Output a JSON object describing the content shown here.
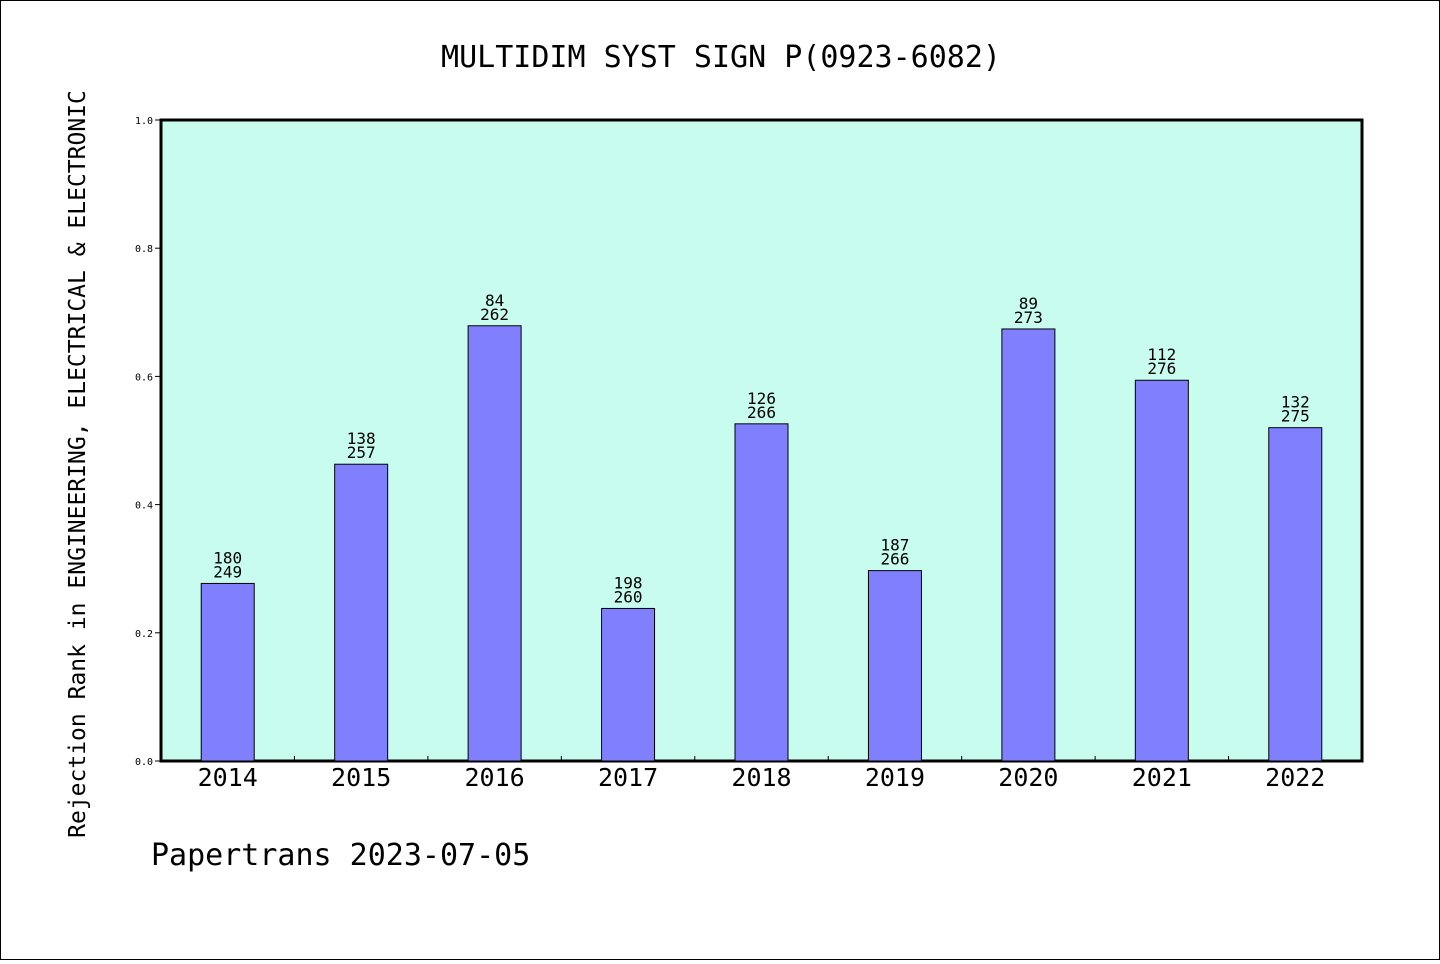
{
  "footer": {
    "text": "Papertrans 2023-07-05"
  },
  "colors": {
    "plot_background": "#c8fcef",
    "bar_fill": "#8080ff",
    "bar_stroke": "#000000"
  },
  "chart_data": {
    "type": "bar",
    "title": "MULTIDIM SYST SIGN P(0923-6082)",
    "xlabel": "",
    "ylabel": "Rejection Rank in ENGINEERING, ELECTRICAL & ELECTRONIC",
    "ylim": [
      0.0,
      1.0
    ],
    "yticks": [
      "0.0",
      "0.2",
      "0.4",
      "0.6",
      "0.8",
      "1.0"
    ],
    "grid": false,
    "categories": [
      "2014",
      "2015",
      "2016",
      "2017",
      "2018",
      "2019",
      "2020",
      "2021",
      "2022"
    ],
    "values": [
      0.277,
      0.463,
      0.679,
      0.238,
      0.526,
      0.297,
      0.674,
      0.594,
      0.52
    ],
    "labels_top": [
      "180",
      "138",
      "84",
      "198",
      "126",
      "187",
      "89",
      "112",
      "132"
    ],
    "labels_bottom": [
      "249",
      "257",
      "262",
      "260",
      "266",
      "266",
      "273",
      "276",
      "275"
    ]
  }
}
